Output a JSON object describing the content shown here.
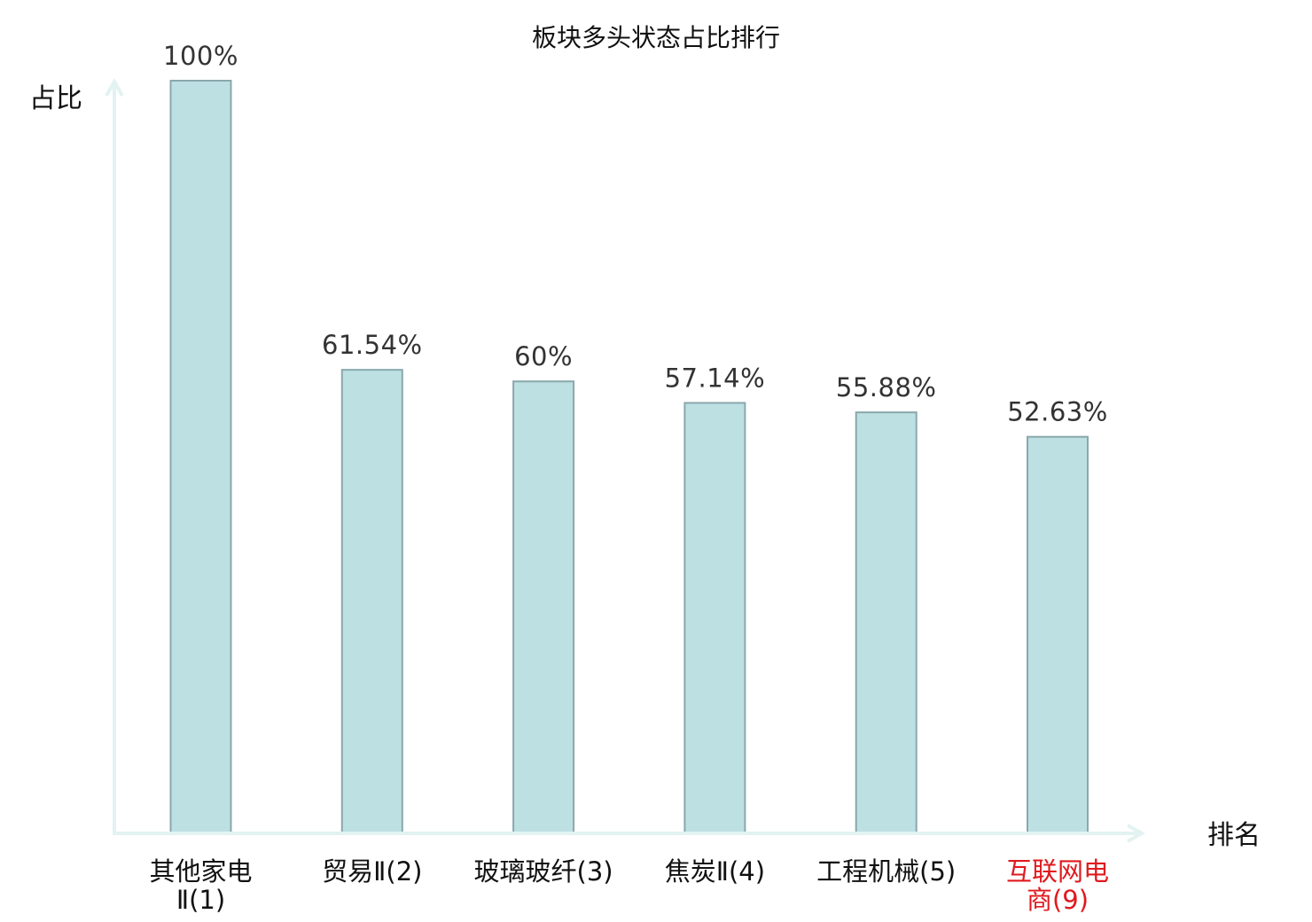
{
  "chart_data": {
    "type": "bar",
    "title": "板块多头状态占比排行",
    "xlabel": "排名",
    "ylabel": "占比",
    "ylim": [
      0,
      100
    ],
    "grid": false,
    "categories": [
      [
        "其他家电",
        "Ⅱ(1)"
      ],
      [
        "贸易Ⅱ(2)"
      ],
      [
        "玻璃玻纤(3)"
      ],
      [
        "焦炭Ⅱ(4)"
      ],
      [
        "工程机械(5)"
      ],
      [
        "互联网电",
        "商(9)"
      ]
    ],
    "values": [
      100,
      61.54,
      60,
      57.14,
      55.88,
      52.63
    ],
    "value_labels": [
      "100%",
      "61.54%",
      "60%",
      "57.14%",
      "55.88%",
      "52.63%"
    ],
    "highlight_index": 5,
    "colors": {
      "bar_fill": "#bde0e3",
      "bar_stroke": "#8aa8ac",
      "axis": "#e2f3f1",
      "highlight_text": "#e0191e"
    }
  }
}
